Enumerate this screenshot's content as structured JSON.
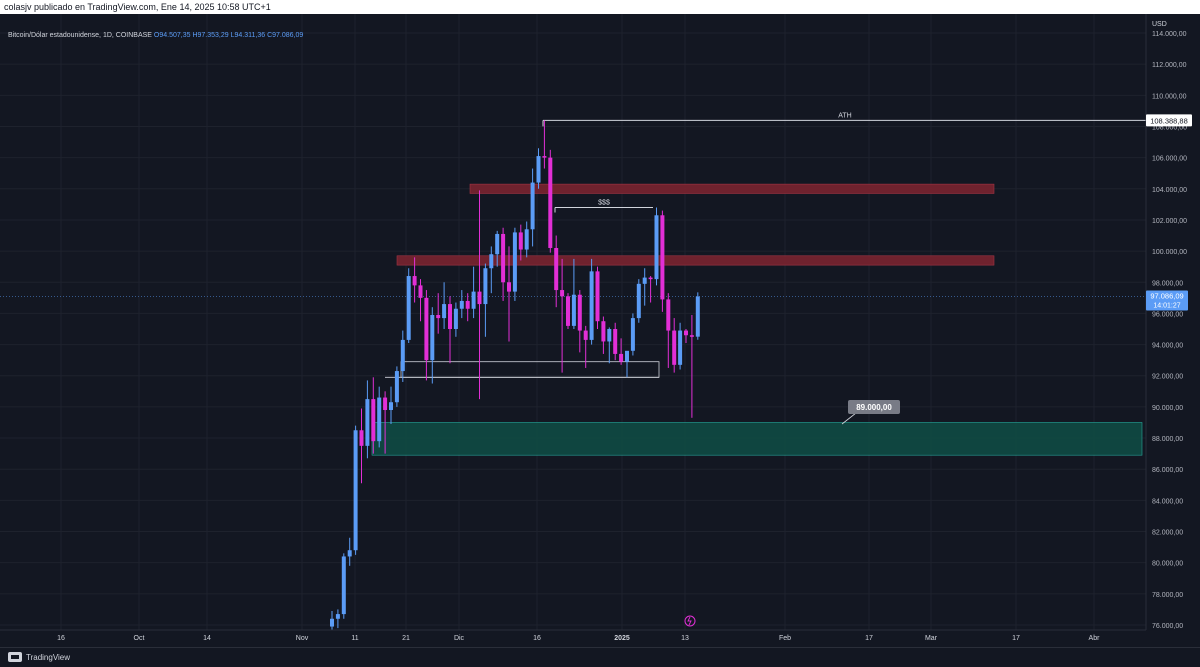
{
  "header": {
    "publish_line": "colasjv publicado en TradingView.com, Ene 14, 2025 10:58 UTC+1"
  },
  "symbol": {
    "title": "Bitcoin/Dólar estadounidense, 1D, COINBASE",
    "open": "O94.507,35",
    "high": "H97.353,29",
    "low": "L94.311,36",
    "close": "C97.086,09"
  },
  "axis": {
    "currency": "USD",
    "price_ticks": [
      "114.000,00",
      "112.000,00",
      "110.000,00",
      "108.000,00",
      "106.000,00",
      "104.000,00",
      "102.000,00",
      "100.000,00",
      "98.000,00",
      "96.000,00",
      "94.000,00",
      "92.000,00",
      "90.000,00",
      "88.000,00",
      "86.000,00",
      "84.000,00",
      "82.000,00",
      "80.000,00",
      "78.000,00",
      "76.000,00"
    ],
    "time_labels": [
      "16",
      "Oct",
      "14",
      "Nov",
      "11",
      "21",
      "Dic",
      "16",
      "2025",
      "13",
      "Feb",
      "17",
      "Mar",
      "17",
      "Abr"
    ]
  },
  "colors": {
    "background": "#131722",
    "up": "#5b9cf6",
    "down": "#e22fd6",
    "zone_red": "#7a2430",
    "zone_green": "#0f4a44",
    "zone_green_border": "#26a69a",
    "grid": "#1e222d"
  },
  "chart_data": {
    "type": "candlestick",
    "ylim": [
      76000,
      114800
    ],
    "price_labels": {
      "last_price": "97.086,09",
      "countdown": "14:01:27",
      "ath": "108.388,88",
      "support": "89.000,00"
    },
    "annotations": {
      "ath_text": "ATH",
      "sss_text": "$$$"
    },
    "levels": {
      "ath": 108388.88,
      "sss": 102800,
      "last": 97086.09,
      "range_high": 92900,
      "range_low": 91900
    },
    "zones": [
      {
        "name": "upper-resistance",
        "from": 103700,
        "to": 104300
      },
      {
        "name": "lower-resistance",
        "from": 99100,
        "to": 99700
      },
      {
        "name": "support",
        "from": 86900,
        "to": 89000
      }
    ],
    "start_date": "2024-11-07",
    "candles": [
      [
        75900,
        76900,
        75600,
        76400
      ],
      [
        76400,
        77000,
        75800,
        76700
      ],
      [
        76700,
        80600,
        76400,
        80400
      ],
      [
        80400,
        81600,
        79800,
        80800
      ],
      [
        80800,
        88800,
        80500,
        88500
      ],
      [
        88500,
        89900,
        85100,
        87500
      ],
      [
        87500,
        91700,
        86700,
        90500
      ],
      [
        90500,
        91900,
        87000,
        87800
      ],
      [
        87800,
        91300,
        87400,
        90600
      ],
      [
        90600,
        91000,
        87000,
        89800
      ],
      [
        89800,
        91300,
        88900,
        90300
      ],
      [
        90300,
        92600,
        90000,
        92300
      ],
      [
        92300,
        94900,
        91600,
        94300
      ],
      [
        94300,
        98900,
        94100,
        98400
      ],
      [
        98400,
        99600,
        96700,
        97800
      ],
      [
        97800,
        98200,
        95500,
        97000
      ],
      [
        97000,
        97500,
        91700,
        93000
      ],
      [
        93000,
        96400,
        91500,
        95900
      ],
      [
        95900,
        97300,
        94700,
        95700
      ],
      [
        95700,
        98000,
        95000,
        96600
      ],
      [
        96600,
        97100,
        92800,
        95000
      ],
      [
        95000,
        96700,
        94500,
        96300
      ],
      [
        96300,
        97500,
        95700,
        96800
      ],
      [
        96800,
        97300,
        95500,
        96300
      ],
      [
        96300,
        99000,
        95700,
        97400
      ],
      [
        97400,
        103900,
        90500,
        96600
      ],
      [
        96600,
        99200,
        94500,
        98900
      ],
      [
        98900,
        100300,
        97300,
        99800
      ],
      [
        99800,
        101300,
        99000,
        101100
      ],
      [
        101100,
        101500,
        96800,
        98000
      ],
      [
        98000,
        100300,
        94200,
        97400
      ],
      [
        97400,
        101500,
        96800,
        101200
      ],
      [
        101200,
        101700,
        99400,
        100100
      ],
      [
        100100,
        101900,
        99600,
        101400
      ],
      [
        101400,
        105300,
        100300,
        104400
      ],
      [
        104400,
        106600,
        104000,
        106100
      ],
      [
        106100,
        108389,
        105300,
        106000
      ],
      [
        106000,
        106500,
        99900,
        100200
      ],
      [
        100200,
        101000,
        96400,
        97500
      ],
      [
        97500,
        99500,
        92200,
        97100
      ],
      [
        97100,
        97300,
        95000,
        95200
      ],
      [
        95200,
        99500,
        95000,
        97200
      ],
      [
        97200,
        97500,
        93500,
        94900
      ],
      [
        94900,
        95200,
        92500,
        94300
      ],
      [
        94300,
        99500,
        94000,
        98700
      ],
      [
        98700,
        99000,
        95000,
        95500
      ],
      [
        95500,
        95800,
        93400,
        94200
      ],
      [
        94200,
        95100,
        92800,
        95000
      ],
      [
        95000,
        95400,
        93000,
        93400
      ],
      [
        93400,
        94400,
        92700,
        92900
      ],
      [
        92900,
        93400,
        91900,
        93600
      ],
      [
        93600,
        96000,
        93300,
        95700
      ],
      [
        95700,
        98200,
        95400,
        97900
      ],
      [
        97900,
        98900,
        96500,
        98300
      ],
      [
        98300,
        98400,
        96700,
        98200
      ],
      [
        98200,
        102800,
        97800,
        102300
      ],
      [
        102300,
        102600,
        96100,
        96900
      ],
      [
        96900,
        97300,
        92500,
        94900
      ],
      [
        94900,
        95700,
        92200,
        92700
      ],
      [
        92700,
        95400,
        92400,
        94900
      ],
      [
        94900,
        95000,
        94100,
        94600
      ],
      [
        94600,
        95900,
        89300,
        94500
      ],
      [
        94507,
        97353,
        94311,
        97086
      ]
    ]
  }
}
